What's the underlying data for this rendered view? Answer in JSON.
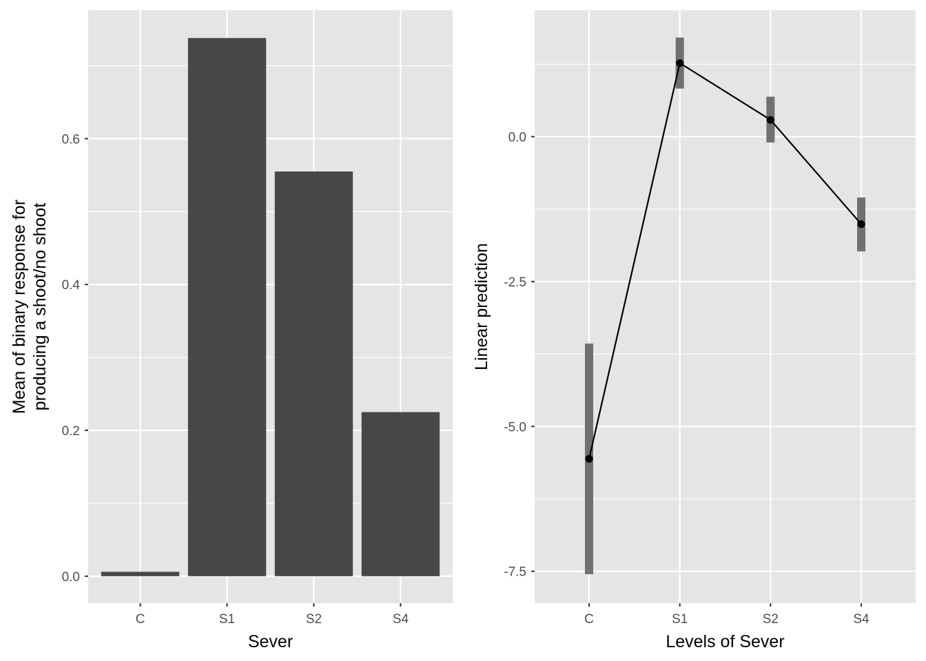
{
  "chart_data": [
    {
      "type": "bar",
      "categories": [
        "C",
        "S1",
        "S2",
        "S4"
      ],
      "values": [
        0.006,
        0.738,
        0.555,
        0.225
      ],
      "xlabel": "Sever",
      "ylabel_lines": [
        "Mean of binary response for",
        "producing a shoot/no shoot"
      ],
      "ylim": [
        -0.037,
        0.776
      ],
      "yticks": [
        0.0,
        0.2,
        0.4,
        0.6
      ],
      "ytick_labels": [
        "0.0",
        "0.2",
        "0.4",
        "0.6"
      ],
      "grid": true,
      "colors": {
        "bar": "#474747",
        "panel": "#e5e5e5",
        "grid": "#ffffff"
      }
    },
    {
      "type": "line",
      "categories": [
        "C",
        "S1",
        "S2",
        "S4"
      ],
      "values": [
        -5.56,
        1.27,
        0.29,
        -1.51
      ],
      "ci_low": [
        -7.55,
        0.83,
        -0.1,
        -1.98
      ],
      "ci_high": [
        -3.57,
        1.71,
        0.69,
        -1.05
      ],
      "xlabel": "Levels of Sever",
      "ylabel": "Linear prediction",
      "ylim": [
        -8.05,
        2.18
      ],
      "yticks": [
        -7.5,
        -5.0,
        -2.5,
        0.0
      ],
      "ytick_labels": [
        "-7.5",
        "-5.0",
        "-2.5",
        "0.0"
      ],
      "grid": true,
      "colors": {
        "line": "#000000",
        "point": "#000000",
        "ci": "#707070",
        "panel": "#e5e5e5",
        "grid": "#ffffff"
      }
    }
  ]
}
